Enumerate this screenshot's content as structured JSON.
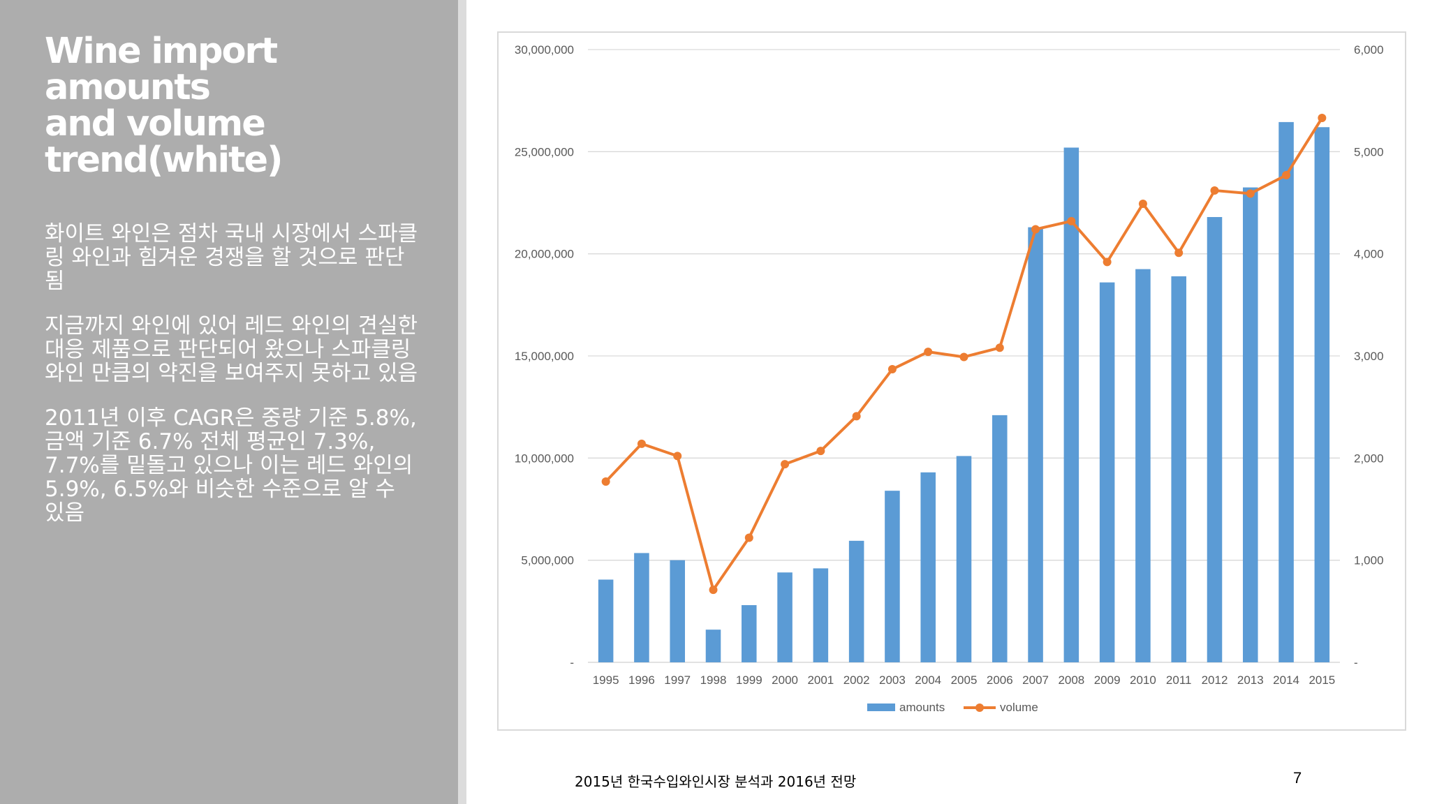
{
  "slide": {
    "title_lines": [
      "Wine import amounts",
      "and volume",
      "trend(white)"
    ],
    "bullets": [
      "화이트 와인은 점차 국내 시장에서 스파클링 와인과 힘겨운 경쟁을 할 것으로 판단됨",
      "지금까지 와인에 있어 레드 와인의 견실한 대응 제품으로 판단되어 왔으나 스파클링 와인 만큼의 약진을 보여주지 못하고 있음",
      "2011년 이후 CAGR은 중량 기준 5.8%, 금액 기준 6.7% 전체 평균인 7.3%, 7.7%를 밑돌고 있으나 이는 레드 와인의 5.9%, 6.5%와 비슷한 수준으로 알 수 있음"
    ],
    "footer_source": "2015년 한국수입와인시장 분석과 2016년 전망",
    "page_number": "7"
  },
  "colors": {
    "left_panel": "#adadad",
    "bar": "#5b9bd5",
    "line": "#ed7d31",
    "gridline": "#d9d9d9"
  },
  "chart_data": {
    "type": "bar",
    "categories": [
      "1995",
      "1996",
      "1997",
      "1998",
      "1999",
      "2000",
      "2001",
      "2002",
      "2003",
      "2004",
      "2005",
      "2006",
      "2007",
      "2008",
      "2009",
      "2010",
      "2011",
      "2012",
      "2013",
      "2014",
      "2015"
    ],
    "series": [
      {
        "name": "amounts",
        "type": "bar",
        "axis": "left",
        "values": [
          4050000,
          5350000,
          5000000,
          1600000,
          2800000,
          4400000,
          4600000,
          5950000,
          8400000,
          9300000,
          10100000,
          12100000,
          21300000,
          25200000,
          18600000,
          19250000,
          18900000,
          21800000,
          23250000,
          26450000,
          26200000
        ]
      },
      {
        "name": "volume",
        "type": "line",
        "axis": "right",
        "values": [
          1770,
          2140,
          2020,
          710,
          1220,
          1940,
          2070,
          2410,
          2870,
          3040,
          2990,
          3080,
          4240,
          4320,
          3920,
          4490,
          4010,
          4620,
          4590,
          4770,
          5330
        ]
      }
    ],
    "y_left": {
      "ylim": [
        0,
        30000000
      ],
      "tick_labels": [
        "-",
        "5,000,000",
        "10,000,000",
        "15,000,000",
        "20,000,000",
        "25,000,000",
        "30,000,000"
      ]
    },
    "y_right": {
      "ylim": [
        0,
        6000
      ],
      "tick_labels": [
        "-",
        "1,000",
        "2,000",
        "3,000",
        "4,000",
        "5,000",
        "6,000"
      ]
    },
    "grid": true,
    "legend": [
      "amounts",
      "volume"
    ],
    "legend_position": "bottom"
  }
}
